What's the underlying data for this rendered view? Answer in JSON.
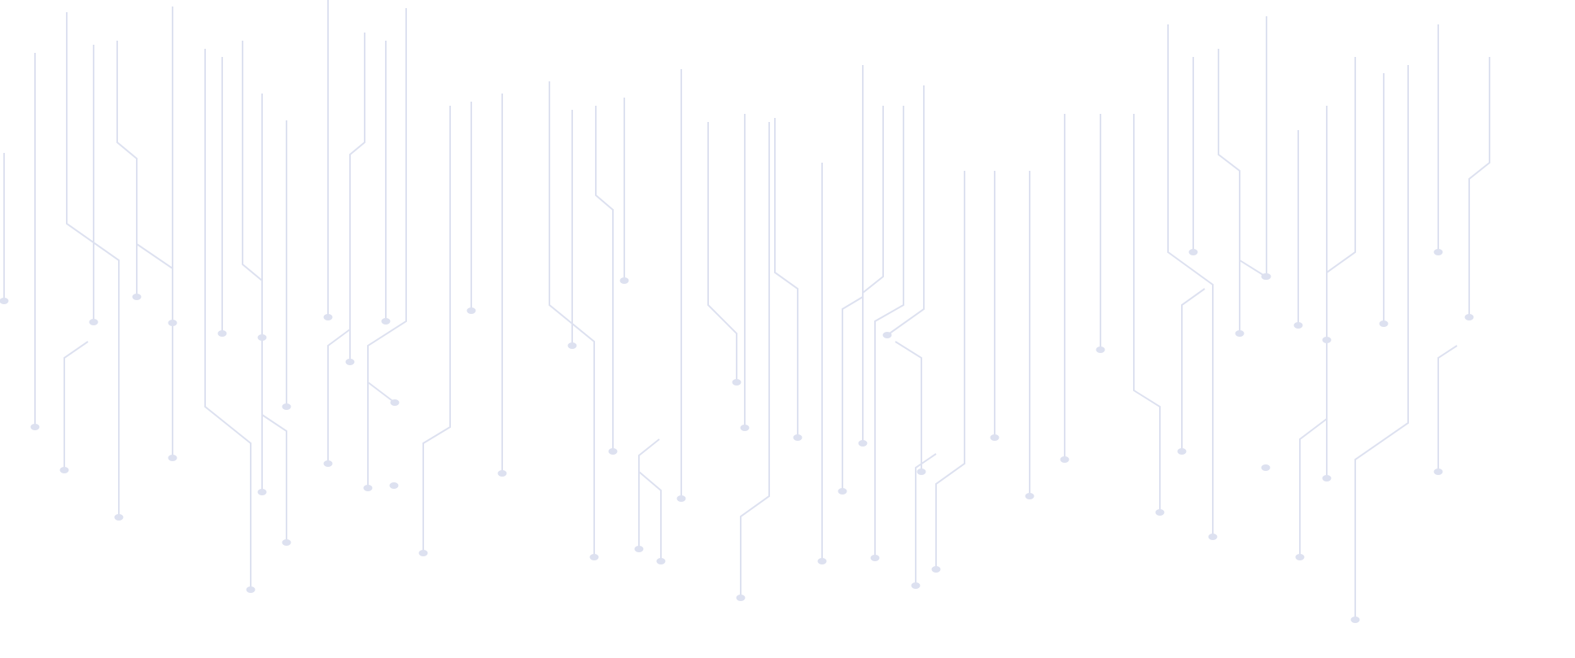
{
  "background": {
    "pattern": "circuit-traces",
    "background_color": "#ffffff",
    "trace_color": "#f1f2fa"
  }
}
